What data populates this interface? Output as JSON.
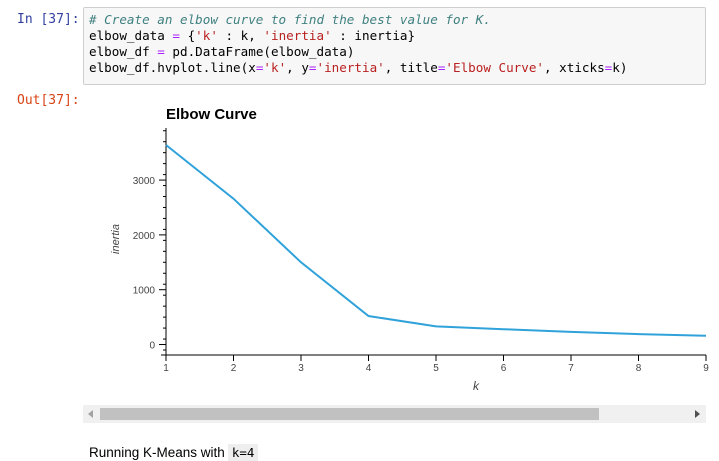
{
  "cell": {
    "in_prompt": "In [37]:",
    "out_prompt": "Out[37]:",
    "code": [
      {
        "parts": [
          [
            "cm",
            "# Create an elbow curve to find the best value for K."
          ]
        ]
      },
      {
        "parts": [
          [
            "",
            "elbow_data "
          ],
          [
            "op",
            "="
          ],
          [
            "",
            " {"
          ],
          [
            "st",
            "'k'"
          ],
          [
            "",
            " : k, "
          ],
          [
            "st",
            "'inertia'"
          ],
          [
            "",
            " : inertia}"
          ]
        ]
      },
      {
        "parts": [
          [
            "",
            "elbow_df "
          ],
          [
            "op",
            "="
          ],
          [
            "",
            " pd.DataFrame(elbow_data)"
          ]
        ]
      },
      {
        "parts": [
          [
            "",
            "elbow_df.hvplot.line(x"
          ],
          [
            "op",
            "="
          ],
          [
            "st",
            "'k'"
          ],
          [
            "",
            ", y"
          ],
          [
            "op",
            "="
          ],
          [
            "st",
            "'inertia'"
          ],
          [
            "",
            ", title"
          ],
          [
            "op",
            "="
          ],
          [
            "st",
            "'Elbow Curve'"
          ],
          [
            "",
            ", xticks"
          ],
          [
            "op",
            "="
          ],
          [
            "",
            "k)"
          ]
        ]
      }
    ]
  },
  "chart_data": {
    "type": "line",
    "title": "Elbow Curve",
    "xlabel": "k",
    "ylabel": "inertia",
    "x": [
      1,
      2,
      3,
      4,
      5,
      6,
      7,
      8,
      9
    ],
    "series": [
      {
        "values": [
          3640,
          2660,
          1500,
          520,
          330,
          280,
          230,
          190,
          160
        ],
        "color": "#30a2da"
      }
    ],
    "xticks": [
      1,
      2,
      3,
      4,
      5,
      6,
      7,
      8,
      9
    ],
    "yticks": [
      0,
      1000,
      2000,
      3000
    ],
    "xlim": [
      1,
      9
    ],
    "ylim": [
      -100,
      3950
    ],
    "grid": false,
    "legend": "none"
  },
  "status": {
    "text": "Running K-Means with",
    "code": "k=4"
  }
}
